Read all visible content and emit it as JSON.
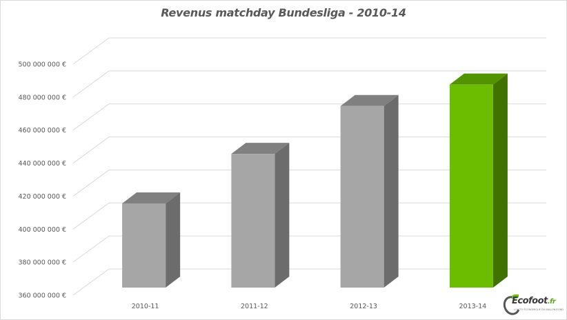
{
  "chart_data": {
    "type": "bar",
    "title": "Revenus matchday Bundesliga - 2010-14",
    "xlabel": "",
    "ylabel": "",
    "categories": [
      "2010-11",
      "2011-12",
      "2012-13",
      "2013-14"
    ],
    "values": [
      411000000,
      441000000,
      470000000,
      483000000
    ],
    "ylim": [
      360000000,
      500000000
    ],
    "yticks": [
      360000000,
      380000000,
      400000000,
      420000000,
      440000000,
      460000000,
      480000000,
      500000000
    ],
    "ytick_labels": [
      "360 000 000 €",
      "380 000 000 €",
      "400 000 000 €",
      "420 000 000 €",
      "440 000 000 €",
      "460 000 000 €",
      "480 000 000 €",
      "500 000 000 €"
    ],
    "grid": true,
    "legend": null,
    "style": "3d-column",
    "bar_colors": [
      "#a6a6a6",
      "#a6a6a6",
      "#a6a6a6",
      "#6cbd00"
    ],
    "highlight_category": "2013-14"
  },
  "watermark": {
    "brand": "Ecofoot",
    "suffix": ".fr",
    "tagline": "L'ACTU ÉCONOMIQUE DU BALLON ROND"
  }
}
